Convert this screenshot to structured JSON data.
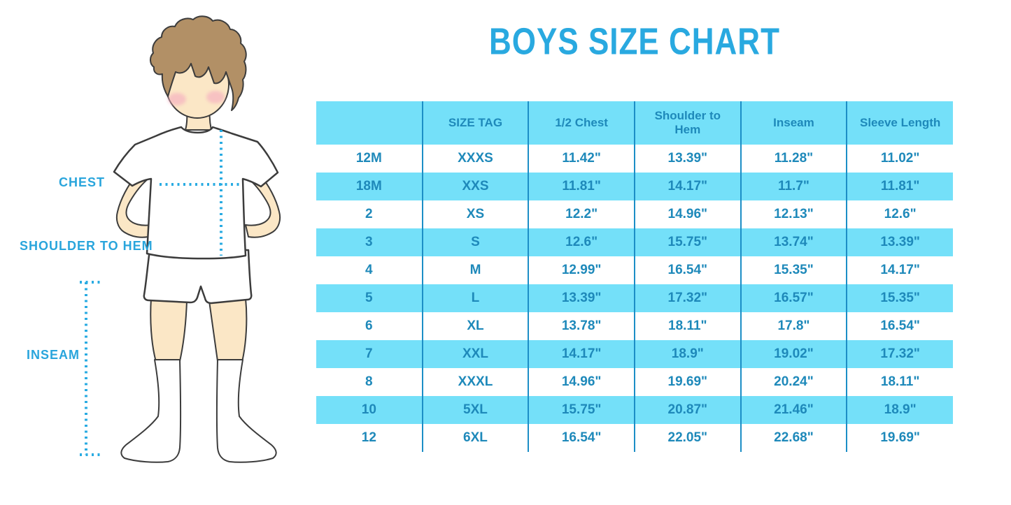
{
  "title": "BOYS SIZE CHART",
  "figure": {
    "chest_label": "CHEST",
    "shoulder_to_hem_label": "SHOULDER TO HEM",
    "inseam_label": "INSEAM"
  },
  "colors": {
    "title_blue": "#29A9E0",
    "figure_label_blue": "#29A5DC",
    "dotted_line_blue": "#29ABE2",
    "row_highlight_blue": "#74E0F9",
    "table_text_blue": "#1E89BA",
    "column_divider_blue": "#1C8EC6",
    "skin": "#FBE7C6",
    "hair_brown": "#B29066",
    "blush_pink": "#F5AFC0",
    "outline_dark": "#3C3C3C"
  },
  "chart_data": {
    "type": "table",
    "title": "BOYS SIZE CHART",
    "columns": [
      "",
      "SIZE TAG",
      "1/2 Chest",
      "Shoulder to Hem",
      "Inseam",
      "Sleeve Length"
    ],
    "rows": [
      [
        "12M",
        "XXXS",
        "11.42\"",
        "13.39\"",
        "11.28\"",
        "11.02\""
      ],
      [
        "18M",
        "XXS",
        "11.81\"",
        "14.17\"",
        "11.7\"",
        "11.81\""
      ],
      [
        "2",
        "XS",
        "12.2\"",
        "14.96\"",
        "12.13\"",
        "12.6\""
      ],
      [
        "3",
        "S",
        "12.6\"",
        "15.75\"",
        "13.74\"",
        "13.39\""
      ],
      [
        "4",
        "M",
        "12.99\"",
        "16.54\"",
        "15.35\"",
        "14.17\""
      ],
      [
        "5",
        "L",
        "13.39\"",
        "17.32\"",
        "16.57\"",
        "15.35\""
      ],
      [
        "6",
        "XL",
        "13.78\"",
        "18.11\"",
        "17.8\"",
        "16.54\""
      ],
      [
        "7",
        "XXL",
        "14.17\"",
        "18.9\"",
        "19.02\"",
        "17.32\""
      ],
      [
        "8",
        "XXXL",
        "14.96\"",
        "19.69\"",
        "20.24\"",
        "18.11\""
      ],
      [
        "10",
        "5XL",
        "15.75\"",
        "20.87\"",
        "21.46\"",
        "18.9\""
      ],
      [
        "12",
        "6XL",
        "16.54\"",
        "22.05\"",
        "22.68\"",
        "19.69\""
      ]
    ],
    "measurement_guides": [
      "CHEST",
      "SHOULDER TO HEM",
      "INSEAM"
    ]
  }
}
